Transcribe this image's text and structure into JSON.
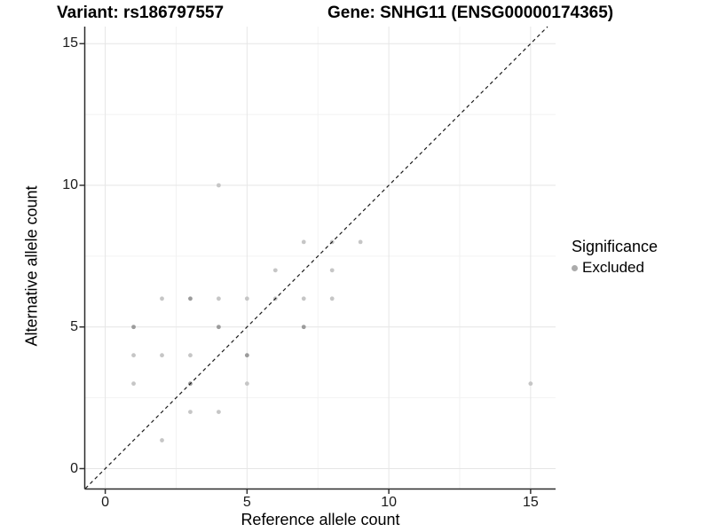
{
  "title": {
    "left": "Variant: rs186797557",
    "right": "Gene: SNHG11 (ENSG00000174365)"
  },
  "legend": {
    "title": "Significance",
    "items": [
      {
        "label": "Excluded",
        "marker_color": "#ababab"
      }
    ]
  },
  "colors": {
    "background": "#ffffff",
    "point": "#c6c6c6",
    "point_overlap": "#9b9b9b",
    "grid_major": "#e6e6e6",
    "grid_minor": "#f2f2f2",
    "axis_line": "#2b2b2b",
    "tick_mark": "#333333",
    "tick_text": "#1a1a1a",
    "dashed_line": "#1a1a1a"
  },
  "chart_data": {
    "type": "scatter",
    "title": "Variant: rs186797557 / Gene: SNHG11 (ENSG00000174365)",
    "xlabel": "Reference allele count",
    "ylabel": "Alternative allele count",
    "x_ticks": [
      "0",
      "5",
      "10",
      "15"
    ],
    "x_tick_values": [
      0,
      5,
      10,
      15
    ],
    "y_ticks": [
      "0",
      "5",
      "10",
      "15"
    ],
    "y_tick_values": [
      0,
      5,
      10,
      15
    ],
    "x_minor_ticks": [
      2.5,
      7.5,
      12.5
    ],
    "y_minor_ticks": [
      2.5,
      7.5,
      12.5
    ],
    "xlim": [
      -0.72,
      15.85
    ],
    "ylim": [
      -0.72,
      15.65
    ],
    "grid": true,
    "legend_position": "right",
    "identity_line": {
      "style": "dashed",
      "from": -0.7,
      "to": 15.6
    },
    "series": [
      {
        "name": "Excluded",
        "points": [
          {
            "x": 4,
            "y": 10,
            "n": 1
          },
          {
            "x": 7,
            "y": 8,
            "n": 1
          },
          {
            "x": 8,
            "y": 8,
            "n": 1
          },
          {
            "x": 9,
            "y": 8,
            "n": 1
          },
          {
            "x": 6,
            "y": 7,
            "n": 1
          },
          {
            "x": 8,
            "y": 7,
            "n": 1
          },
          {
            "x": 2,
            "y": 6,
            "n": 1
          },
          {
            "x": 3,
            "y": 6,
            "n": 2
          },
          {
            "x": 4,
            "y": 6,
            "n": 1
          },
          {
            "x": 5,
            "y": 6,
            "n": 1
          },
          {
            "x": 6,
            "y": 6,
            "n": 1
          },
          {
            "x": 7,
            "y": 6,
            "n": 1
          },
          {
            "x": 8,
            "y": 6,
            "n": 1
          },
          {
            "x": 1,
            "y": 5,
            "n": 2
          },
          {
            "x": 4,
            "y": 5,
            "n": 2
          },
          {
            "x": 7,
            "y": 5,
            "n": 2
          },
          {
            "x": 1,
            "y": 4,
            "n": 1
          },
          {
            "x": 2,
            "y": 4,
            "n": 1
          },
          {
            "x": 3,
            "y": 4,
            "n": 1
          },
          {
            "x": 5,
            "y": 4,
            "n": 2
          },
          {
            "x": 1,
            "y": 3,
            "n": 1
          },
          {
            "x": 3,
            "y": 3,
            "n": 2
          },
          {
            "x": 5,
            "y": 3,
            "n": 1
          },
          {
            "x": 15,
            "y": 3,
            "n": 1
          },
          {
            "x": 3,
            "y": 2,
            "n": 1
          },
          {
            "x": 4,
            "y": 2,
            "n": 1
          },
          {
            "x": 2,
            "y": 1,
            "n": 1
          }
        ]
      }
    ]
  }
}
